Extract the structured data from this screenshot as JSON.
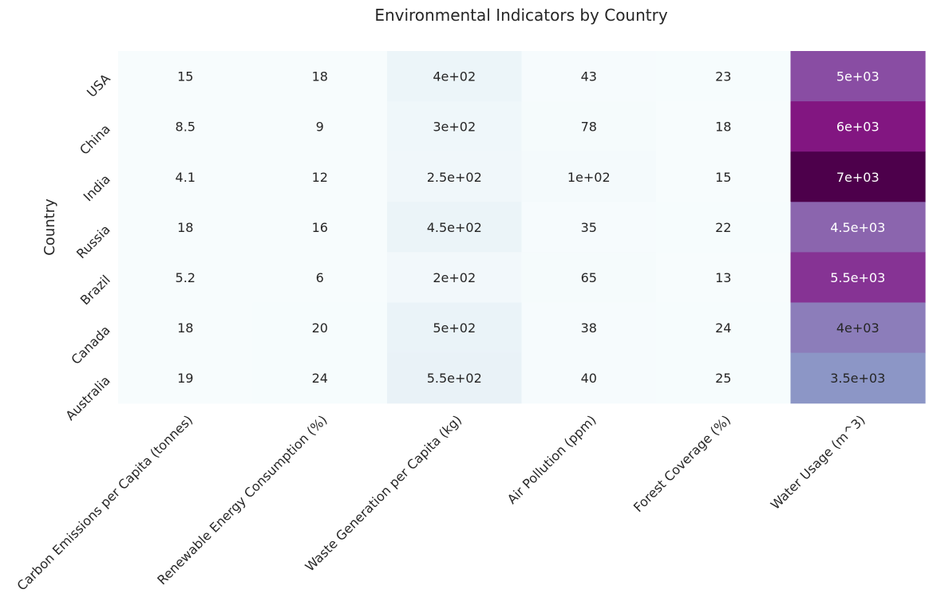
{
  "chart_data": {
    "type": "heatmap",
    "title": "Environmental Indicators by Country",
    "xlabel": "",
    "ylabel": "Country",
    "rows": [
      "USA",
      "China",
      "India",
      "Russia",
      "Brazil",
      "Canada",
      "Australia"
    ],
    "columns": [
      "Carbon Emissions per Capita (tonnes)",
      "Renewable Energy Consumption (%)",
      "Waste Generation per Capita (kg)",
      "Air Pollution (ppm)",
      "Forest Coverage (%)",
      "Water Usage (m^3)"
    ],
    "values": [
      [
        15,
        18,
        400,
        43,
        23,
        5000
      ],
      [
        8.5,
        9,
        300,
        78,
        18,
        6000
      ],
      [
        4.1,
        12,
        250,
        100,
        15,
        7000
      ],
      [
        18,
        16,
        450,
        35,
        22,
        4500
      ],
      [
        5.2,
        6,
        200,
        65,
        13,
        5500
      ],
      [
        18,
        20,
        500,
        38,
        24,
        4000
      ],
      [
        19,
        24,
        550,
        40,
        25,
        3500
      ]
    ],
    "annotations": [
      [
        "15",
        "18",
        "4e+02",
        "43",
        "23",
        "5e+03"
      ],
      [
        "8.5",
        "9",
        "3e+02",
        "78",
        "18",
        "6e+03"
      ],
      [
        "4.1",
        "12",
        "2.5e+02",
        "1e+02",
        "15",
        "7e+03"
      ],
      [
        "18",
        "16",
        "4.5e+02",
        "35",
        "22",
        "4.5e+03"
      ],
      [
        "5.2",
        "6",
        "2e+02",
        "65",
        "13",
        "5.5e+03"
      ],
      [
        "18",
        "20",
        "5e+02",
        "38",
        "24",
        "4e+03"
      ],
      [
        "19",
        "24",
        "5.5e+02",
        "40",
        "25",
        "3.5e+03"
      ]
    ],
    "colormap": "BuPu",
    "colormap_stops": [
      "#f7fcfd",
      "#e0ecf4",
      "#bfd3e6",
      "#9ebcda",
      "#8c96c6",
      "#8c6bb1",
      "#88419d",
      "#810f7c",
      "#4d004b"
    ],
    "color_range": [
      0,
      7000
    ],
    "colorbar": false,
    "grid": false
  }
}
